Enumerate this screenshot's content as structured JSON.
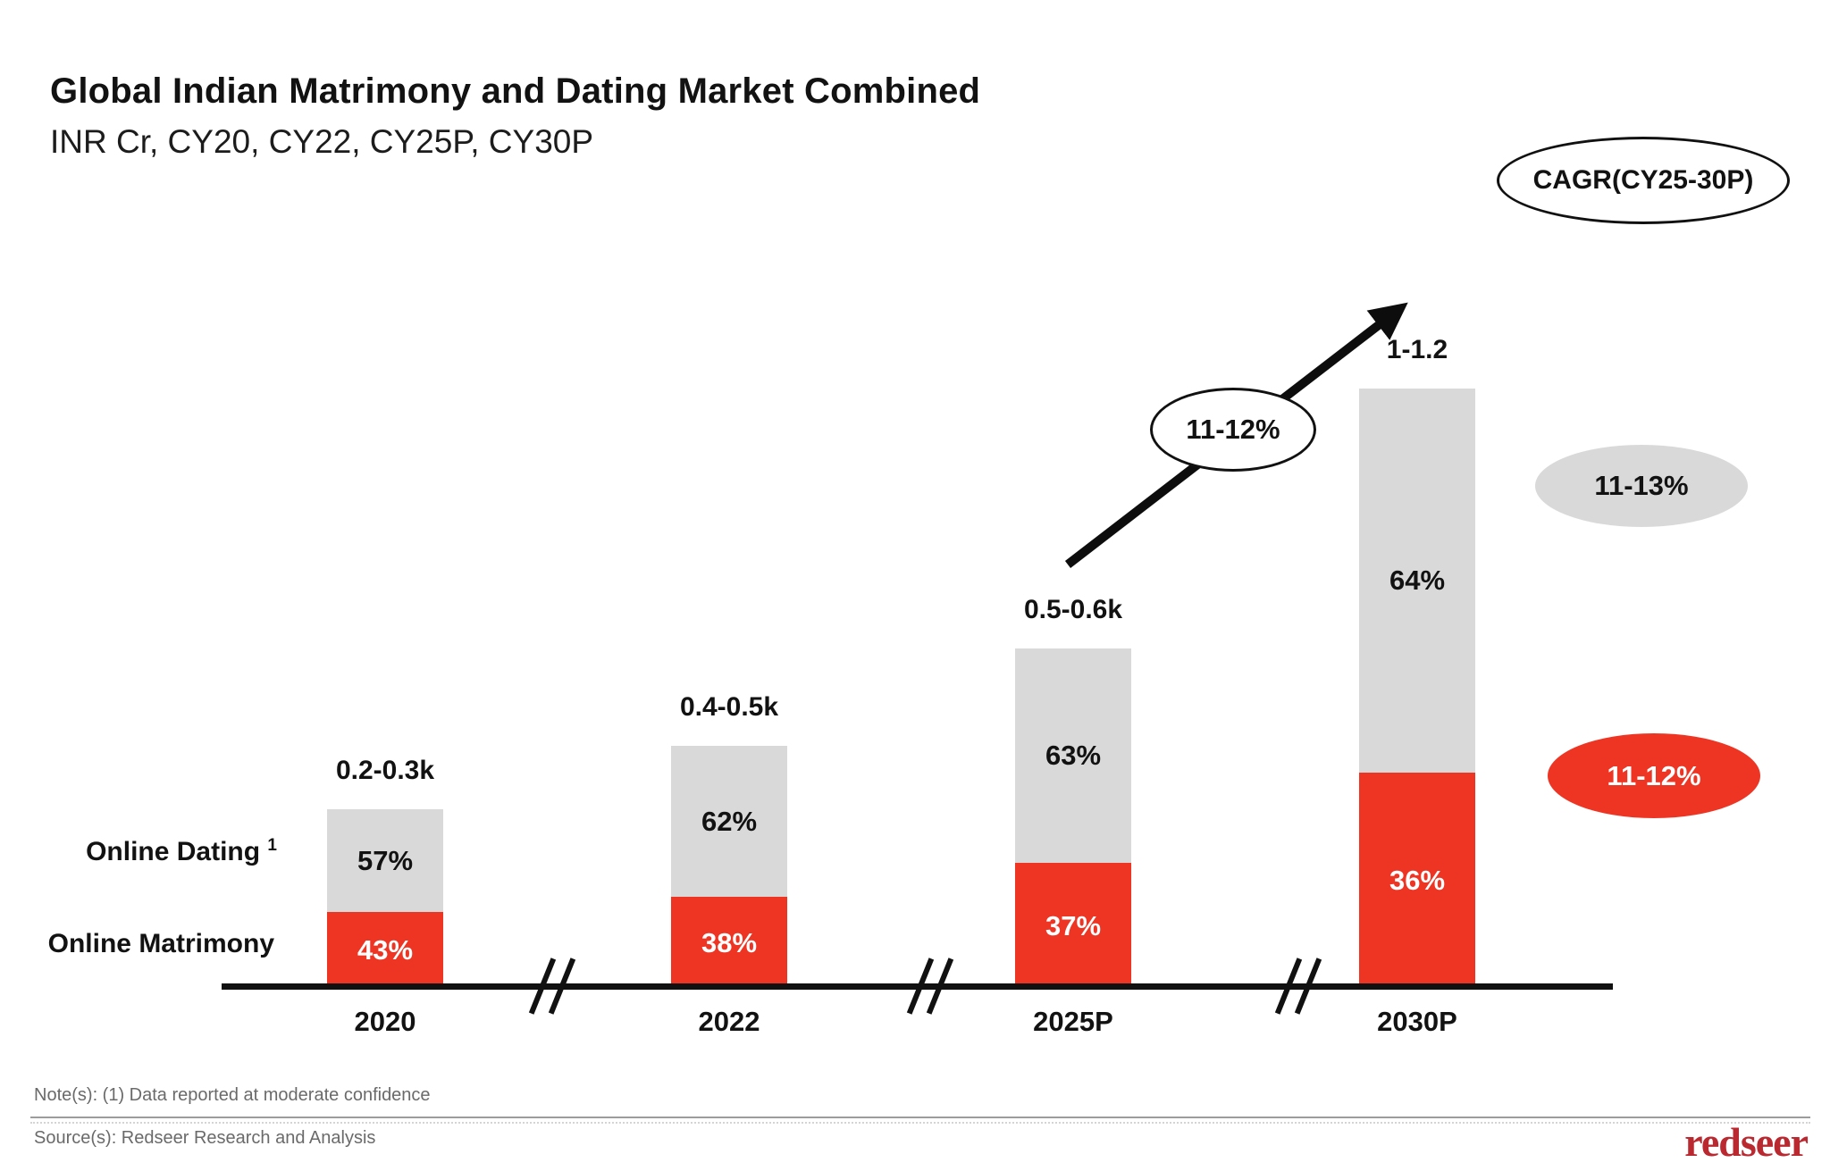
{
  "title": "Global Indian Matrimony and Dating Market Combined",
  "subtitle": "INR Cr, CY20, CY22, CY25P, CY30P",
  "cagr_badge_label": "CAGR(CY25-30P)",
  "arrow_badge_label": "11-12%",
  "legend": {
    "dating_label": "Online Dating",
    "dating_footnote": "1",
    "matrimony_label": "Online Matrimony"
  },
  "chart_data": {
    "type": "bar",
    "stacked": true,
    "unit": "INR Cr",
    "categories": [
      "2020",
      "2022",
      "2025P",
      "2030P"
    ],
    "totals_display": [
      "0.2-0.3k",
      "0.4-0.5k",
      "0.5-0.6k",
      "1-1.2"
    ],
    "series": [
      {
        "name": "Online Matrimony",
        "color": "#ee3524",
        "values_pct": [
          43,
          38,
          37,
          36
        ]
      },
      {
        "name": "Online Dating",
        "color": "#d9d9d9",
        "values_pct": [
          57,
          62,
          63,
          64
        ]
      }
    ],
    "growth_annotation": {
      "label": "11-12%",
      "from_category": "2025P",
      "to_category": "2030P"
    },
    "cagr_cy25_30p": {
      "online_dating": "11-13%",
      "online_matrimony": "11-12%"
    },
    "x_axis_breaks": true,
    "legend_position": "left-of-first-bar"
  },
  "side_badges": {
    "dating_cagr": "11-13%",
    "matrimony_cagr": "11-12%"
  },
  "footer": {
    "note": "Note(s): (1) Data reported at moderate confidence",
    "source": "Source(s): Redseer Research and Analysis",
    "logo": "redseer"
  },
  "colors": {
    "matrimony_red": "#ee3524",
    "dating_gray": "#d9d9d9",
    "logo_red": "#ba2830"
  }
}
